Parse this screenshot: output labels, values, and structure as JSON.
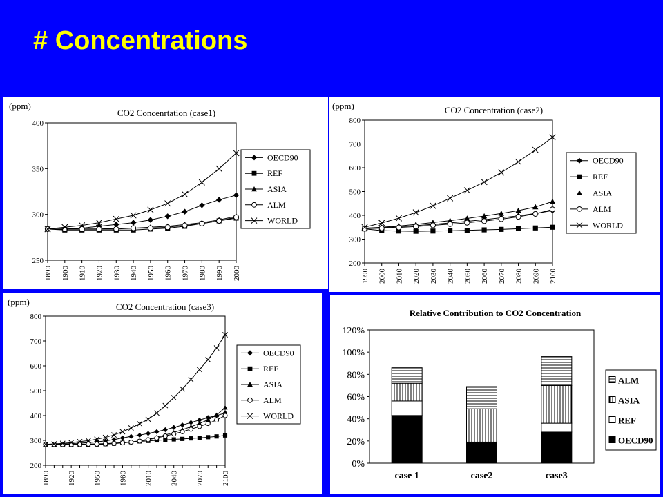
{
  "slide": {
    "title": "# Concentrations"
  },
  "chart_data": [
    {
      "type": "line",
      "title": "CO2 Concenrtation (case1)",
      "ylabel": "(ppm)",
      "x": [
        1890,
        1900,
        1910,
        1920,
        1930,
        1940,
        1950,
        1960,
        1970,
        1980,
        1990,
        2000
      ],
      "xlim": [
        1890,
        2000
      ],
      "ylim": [
        250,
        400
      ],
      "yticks": [
        250,
        300,
        350,
        400
      ],
      "legend_position": "right",
      "series": [
        {
          "name": "OECD90",
          "marker": "diamond",
          "values": [
            284,
            284,
            285,
            287,
            289,
            291,
            294,
            298,
            303,
            310,
            316,
            321
          ]
        },
        {
          "name": "REF",
          "marker": "square",
          "values": [
            284,
            283,
            283,
            283,
            283,
            283,
            284,
            285,
            287,
            290,
            293,
            296
          ]
        },
        {
          "name": "ASIA",
          "marker": "triangle",
          "values": [
            284,
            284,
            284,
            284,
            285,
            285,
            286,
            287,
            289,
            291,
            294,
            298
          ]
        },
        {
          "name": "ALM",
          "marker": "circle",
          "values": [
            284,
            284,
            284,
            284,
            284,
            285,
            285,
            286,
            288,
            290,
            293,
            297
          ]
        },
        {
          "name": "WORLD",
          "marker": "cross",
          "values": [
            284,
            286,
            288,
            291,
            295,
            299,
            305,
            312,
            322,
            335,
            350,
            367
          ]
        }
      ]
    },
    {
      "type": "line",
      "title": "CO2 Concentration (case2)",
      "ylabel": "(ppm)",
      "x": [
        1990,
        2000,
        2010,
        2020,
        2030,
        2040,
        2050,
        2060,
        2070,
        2080,
        2090,
        2100
      ],
      "xlim": [
        1990,
        2100
      ],
      "ylim": [
        200,
        800
      ],
      "yticks": [
        200,
        300,
        400,
        500,
        600,
        700,
        800
      ],
      "legend_position": "right",
      "series": [
        {
          "name": "OECD90",
          "marker": "diamond",
          "values": [
            345,
            348,
            352,
            357,
            362,
            368,
            375,
            382,
            390,
            398,
            408,
            420
          ]
        },
        {
          "name": "REF",
          "marker": "square",
          "values": [
            343,
            336,
            334,
            333,
            334,
            335,
            337,
            339,
            341,
            344,
            347,
            350
          ]
        },
        {
          "name": "ASIA",
          "marker": "triangle",
          "values": [
            346,
            350,
            355,
            362,
            370,
            378,
            387,
            397,
            408,
            420,
            435,
            458
          ]
        },
        {
          "name": "ALM",
          "marker": "circle",
          "values": [
            344,
            346,
            349,
            353,
            358,
            363,
            369,
            376,
            384,
            394,
            406,
            425
          ]
        },
        {
          "name": "WORLD",
          "marker": "cross",
          "values": [
            350,
            368,
            388,
            412,
            440,
            472,
            505,
            540,
            580,
            625,
            675,
            728
          ]
        }
      ]
    },
    {
      "type": "line",
      "title": "CO2 Concentration (case3)",
      "ylabel": "(ppm)",
      "x": [
        1890,
        1900,
        1910,
        1920,
        1930,
        1940,
        1950,
        1960,
        1970,
        1980,
        1990,
        2000,
        2010,
        2020,
        2030,
        2040,
        2050,
        2060,
        2070,
        2080,
        2090,
        2100
      ],
      "xlim": [
        1890,
        2100
      ],
      "xticks": [
        1890,
        1920,
        1950,
        1980,
        2010,
        2040,
        2070,
        2100
      ],
      "ylim": [
        200,
        800
      ],
      "yticks": [
        200,
        300,
        400,
        500,
        600,
        700,
        800
      ],
      "legend_position": "right",
      "series": [
        {
          "name": "OECD90",
          "marker": "diamond",
          "values": [
            284,
            284,
            285,
            287,
            289,
            291,
            294,
            298,
            303,
            310,
            316,
            321,
            328,
            335,
            343,
            352,
            362,
            372,
            382,
            392,
            400,
            410
          ]
        },
        {
          "name": "REF",
          "marker": "square",
          "values": [
            284,
            283,
            283,
            283,
            283,
            283,
            284,
            285,
            287,
            290,
            293,
            296,
            298,
            300,
            302,
            304,
            306,
            308,
            310,
            313,
            316,
            320
          ]
        },
        {
          "name": "ASIA",
          "marker": "triangle",
          "values": [
            284,
            284,
            284,
            284,
            285,
            285,
            286,
            287,
            289,
            291,
            294,
            298,
            305,
            313,
            322,
            332,
            343,
            355,
            368,
            383,
            402,
            432
          ]
        },
        {
          "name": "ALM",
          "marker": "circle",
          "values": [
            284,
            284,
            284,
            284,
            284,
            285,
            285,
            286,
            288,
            290,
            293,
            297,
            303,
            310,
            318,
            326,
            335,
            345,
            356,
            368,
            382,
            400
          ]
        },
        {
          "name": "WORLD",
          "marker": "cross",
          "values": [
            284,
            286,
            288,
            291,
            295,
            299,
            305,
            312,
            322,
            335,
            350,
            367,
            385,
            410,
            440,
            472,
            507,
            545,
            585,
            625,
            672,
            725
          ]
        }
      ]
    },
    {
      "type": "bar",
      "stacked": true,
      "title": "Relative Contribution to CO2 Concentration",
      "categories": [
        "case 1",
        "case2",
        "case3"
      ],
      "ylim": [
        0,
        120
      ],
      "yticks": [
        "0%",
        "20%",
        "40%",
        "60%",
        "80%",
        "100%",
        "120%"
      ],
      "legend_position": "right",
      "series": [
        {
          "name": "OECD90",
          "fill": "solid-black",
          "values": [
            43,
            19,
            28
          ]
        },
        {
          "name": "REF",
          "fill": "white",
          "values": [
            13,
            0,
            8
          ]
        },
        {
          "name": "ASIA",
          "fill": "vertical-lines",
          "values": [
            16,
            30,
            34
          ]
        },
        {
          "name": "ALM",
          "fill": "horizontal-lines",
          "values": [
            14,
            20,
            26
          ]
        }
      ],
      "legend_order": [
        "ALM",
        "ASIA",
        "REF",
        "OECD90"
      ]
    }
  ]
}
